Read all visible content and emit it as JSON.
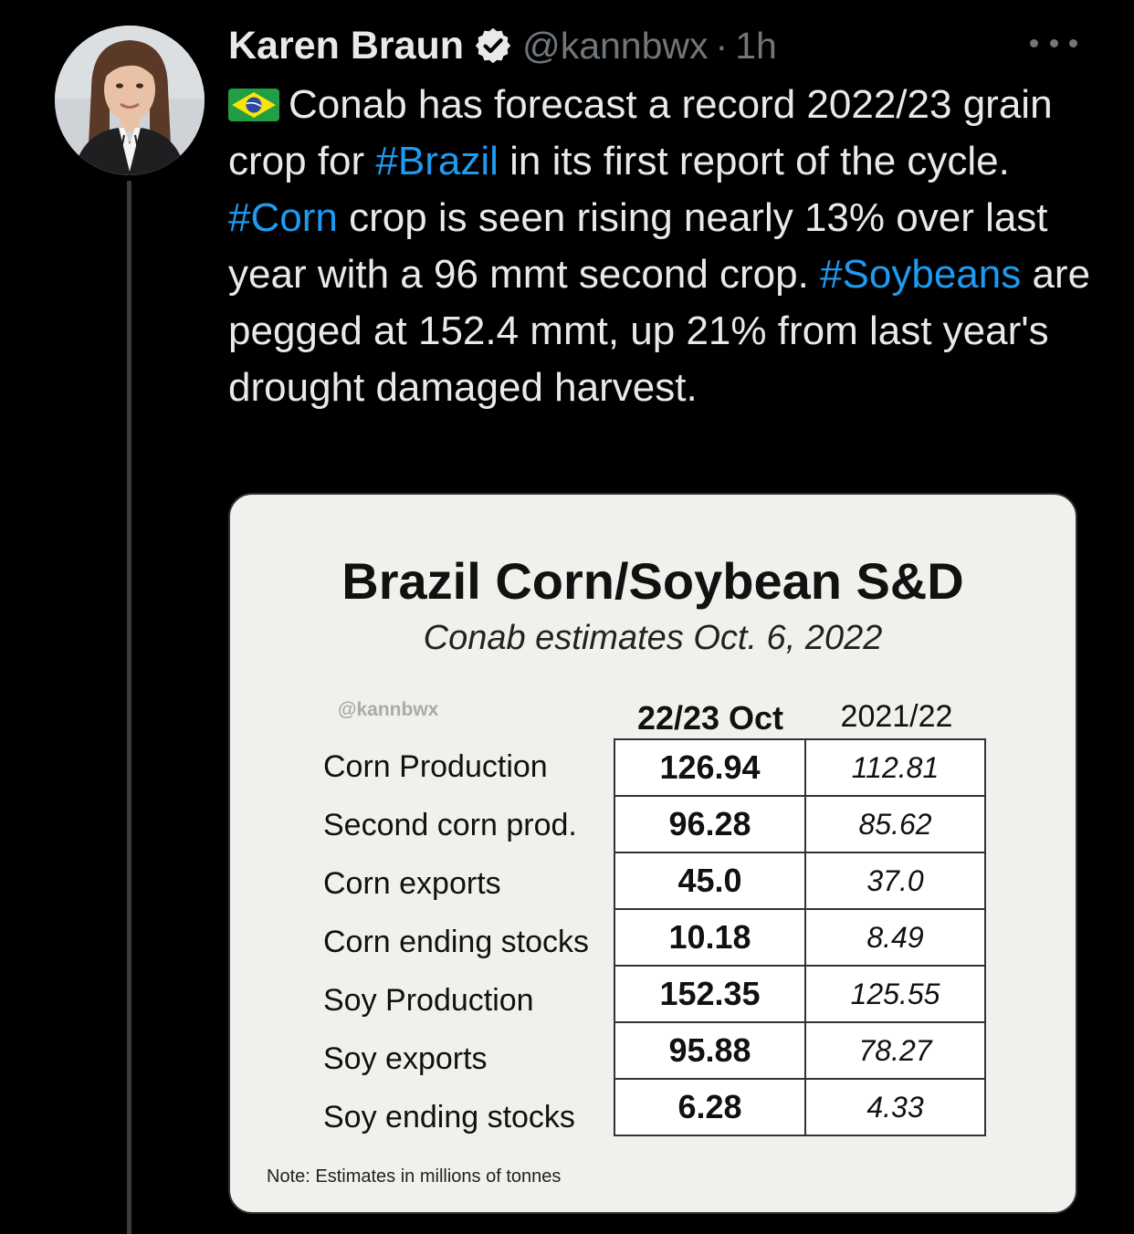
{
  "author": {
    "name": "Karen Braun",
    "handle": "@kannbwx",
    "separator": "·",
    "time": "1h"
  },
  "icons": {
    "verified": "verified-badge-icon",
    "more": "more-options-icon",
    "flag": "brazil-flag-icon"
  },
  "colors": {
    "background": "#000000",
    "text": "#e7e9ea",
    "muted": "#71767b",
    "link": "#1d9bf0",
    "card": "#f1f0ec"
  },
  "tweet": {
    "segments": [
      {
        "text": "Conab has forecast a record 2022/23 grain crop for ",
        "link": false
      },
      {
        "text": "#Brazil",
        "link": true
      },
      {
        "text": " in its first report of the cycle. ",
        "link": false
      },
      {
        "text": "#Corn",
        "link": true
      },
      {
        "text": " crop is seen rising nearly 13% over last year with a 96 mmt second crop. ",
        "link": false
      },
      {
        "text": "#Soybeans",
        "link": true
      },
      {
        "text": " are pegged at 152.4 mmt, up 21% from last year's drought damaged harvest.",
        "link": false
      }
    ]
  },
  "chart_data": {
    "type": "table",
    "title": "Brazil Corn/Soybean S&D",
    "subtitle": "Conab estimates Oct. 6, 2022",
    "watermark": "@kannbwx",
    "columns": [
      "22/23 Oct",
      "2021/22"
    ],
    "rows": [
      {
        "label": "Corn Production",
        "values": [
          "126.94",
          "112.81"
        ]
      },
      {
        "label": "Second corn prod.",
        "values": [
          "96.28",
          "85.62"
        ]
      },
      {
        "label": "Corn exports",
        "values": [
          "45.0",
          "37.0"
        ]
      },
      {
        "label": "Corn ending stocks",
        "values": [
          "10.18",
          "8.49"
        ]
      },
      {
        "label": "Soy Production",
        "values": [
          "152.35",
          "125.55"
        ]
      },
      {
        "label": "Soy exports",
        "values": [
          "95.88",
          "78.27"
        ]
      },
      {
        "label": "Soy ending stocks",
        "values": [
          "6.28",
          "4.33"
        ]
      }
    ],
    "note": "Note: Estimates in millions of tonnes"
  }
}
